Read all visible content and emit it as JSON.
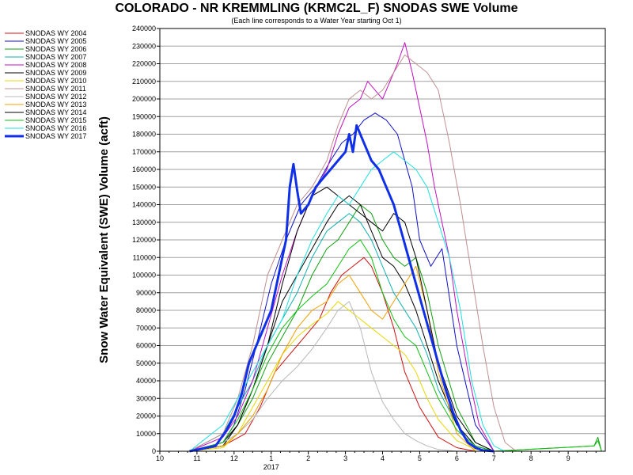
{
  "chart_data": {
    "type": "line",
    "title": "COLORADO - NR KREMMLING (KRMC2L_F) SNODAS SWE Volume",
    "subtitle": "(Each line corresponds to a Water Year starting Oct 1)",
    "ylabel": "Snow Water Equivalent (SWE) Volume (acft)",
    "xlabel": "",
    "ylim": [
      0,
      240000
    ],
    "yticks": [
      0,
      10000,
      20000,
      30000,
      40000,
      50000,
      60000,
      70000,
      80000,
      90000,
      100000,
      110000,
      120000,
      130000,
      140000,
      150000,
      160000,
      170000,
      180000,
      190000,
      200000,
      210000,
      220000,
      230000,
      240000
    ],
    "xticks": [
      {
        "month": 0,
        "label": "10"
      },
      {
        "month": 1,
        "label": "11"
      },
      {
        "month": 2,
        "label": "12"
      },
      {
        "month": 3,
        "label": "1",
        "sublabel": "2017"
      },
      {
        "month": 4,
        "label": "2"
      },
      {
        "month": 5,
        "label": "3"
      },
      {
        "month": 6,
        "label": "4"
      },
      {
        "month": 7,
        "label": "5"
      },
      {
        "month": 8,
        "label": "6"
      },
      {
        "month": 9,
        "label": "7"
      },
      {
        "month": 10,
        "label": "8"
      },
      {
        "month": 11,
        "label": "9"
      }
    ],
    "xlim_months": [
      0,
      12
    ],
    "grid": "horizontal",
    "legend_position": "left",
    "series": [
      {
        "name": "SNODAS WY 2004",
        "color": "#d01010",
        "width": 1,
        "x": [
          0.8,
          1.7,
          2.3,
          2.7,
          3.1,
          3.5,
          3.9,
          4.3,
          4.6,
          4.9,
          5.2,
          5.5,
          5.7,
          6.0,
          6.3,
          6.6,
          7.0,
          7.5,
          8.0,
          8.5
        ],
        "y": [
          0,
          3000,
          10000,
          25000,
          45000,
          55000,
          65000,
          75000,
          90000,
          100000,
          105000,
          110000,
          105000,
          90000,
          70000,
          45000,
          25000,
          8000,
          2000,
          0
        ]
      },
      {
        "name": "SNODAS WY 2005",
        "color": "#1010c8",
        "width": 1,
        "x": [
          0.8,
          1.7,
          2.0,
          2.3,
          2.6,
          3.0,
          3.4,
          3.8,
          4.2,
          4.6,
          4.9,
          5.2,
          5.5,
          5.8,
          6.1,
          6.4,
          6.6,
          6.8,
          7.0,
          7.3,
          7.6,
          8.0,
          8.5,
          9.0
        ],
        "y": [
          0,
          5000,
          15000,
          35000,
          60000,
          95000,
          120000,
          140000,
          150000,
          165000,
          175000,
          180000,
          188000,
          192000,
          188000,
          180000,
          165000,
          150000,
          120000,
          105000,
          115000,
          60000,
          15000,
          0
        ]
      },
      {
        "name": "SNODAS WY 2006",
        "color": "#10a010",
        "width": 1,
        "x": [
          0.8,
          1.7,
          2.1,
          2.5,
          2.9,
          3.3,
          3.7,
          4.1,
          4.5,
          4.8,
          5.1,
          5.4,
          5.7,
          6.0,
          6.3,
          6.6,
          6.9,
          7.2,
          7.5,
          8.0,
          8.5,
          9.0,
          11.7,
          11.8,
          11.9
        ],
        "y": [
          0,
          3000,
          15000,
          30000,
          50000,
          65000,
          80000,
          100000,
          115000,
          120000,
          130000,
          140000,
          135000,
          120000,
          110000,
          105000,
          110000,
          90000,
          60000,
          25000,
          5000,
          0,
          3000,
          8000,
          0
        ]
      },
      {
        "name": "SNODAS WY 2007",
        "color": "#10b0b0",
        "width": 1,
        "x": [
          0.8,
          1.7,
          2.1,
          2.5,
          2.9,
          3.3,
          3.7,
          4.1,
          4.5,
          4.8,
          5.1,
          5.4,
          5.7,
          6.0,
          6.3,
          6.6,
          6.9,
          7.2,
          7.5,
          8.0,
          8.5,
          9.0
        ],
        "y": [
          0,
          10000,
          25000,
          40000,
          60000,
          75000,
          90000,
          110000,
          125000,
          130000,
          135000,
          130000,
          120000,
          105000,
          90000,
          80000,
          70000,
          55000,
          35000,
          15000,
          3000,
          0
        ]
      },
      {
        "name": "SNODAS WY 2008",
        "color": "#c010c0",
        "width": 1,
        "x": [
          0.8,
          1.7,
          2.1,
          2.5,
          2.9,
          3.3,
          3.7,
          4.1,
          4.5,
          4.8,
          5.1,
          5.4,
          5.6,
          5.8,
          6.0,
          6.2,
          6.4,
          6.6,
          6.8,
          7.0,
          7.2,
          7.4,
          7.6,
          7.8,
          8.0,
          8.3,
          8.6,
          9.0
        ],
        "y": [
          0,
          8000,
          20000,
          40000,
          70000,
          100000,
          125000,
          145000,
          160000,
          180000,
          195000,
          200000,
          210000,
          205000,
          200000,
          210000,
          220000,
          232000,
          215000,
          195000,
          175000,
          150000,
          130000,
          110000,
          80000,
          45000,
          15000,
          0
        ]
      },
      {
        "name": "SNODAS WY 2009",
        "color": "#000000",
        "width": 1,
        "x": [
          0.8,
          1.7,
          2.1,
          2.5,
          2.9,
          3.3,
          3.7,
          4.1,
          4.5,
          4.8,
          5.1,
          5.4,
          5.7,
          6.0,
          6.3,
          6.6,
          6.9,
          7.2,
          7.5,
          8.0,
          8.5,
          9.0
        ],
        "y": [
          0,
          3000,
          15000,
          35000,
          60000,
          85000,
          100000,
          115000,
          130000,
          140000,
          145000,
          140000,
          125000,
          110000,
          105000,
          95000,
          80000,
          60000,
          40000,
          15000,
          3000,
          0
        ]
      },
      {
        "name": "SNODAS WY 2010",
        "color": "#e8d800",
        "width": 1,
        "x": [
          0.8,
          1.7,
          2.1,
          2.5,
          2.9,
          3.3,
          3.7,
          4.1,
          4.5,
          4.8,
          5.1,
          5.4,
          5.7,
          6.0,
          6.3,
          6.6,
          6.9,
          7.2,
          7.5,
          8.0,
          8.5,
          9.0
        ],
        "y": [
          0,
          2000,
          10000,
          25000,
          40000,
          55000,
          65000,
          72000,
          78000,
          85000,
          80000,
          75000,
          70000,
          65000,
          60000,
          55000,
          45000,
          30000,
          18000,
          6000,
          1000,
          0
        ]
      },
      {
        "name": "SNODAS WY 2011",
        "color": "#c09090",
        "width": 1,
        "x": [
          0.8,
          1.7,
          2.1,
          2.5,
          2.9,
          3.3,
          3.7,
          4.1,
          4.5,
          4.8,
          5.1,
          5.4,
          5.7,
          6.0,
          6.3,
          6.6,
          6.9,
          7.2,
          7.5,
          7.8,
          8.1,
          8.4,
          8.7,
          9.0,
          9.3,
          9.6
        ],
        "y": [
          0,
          10000,
          30000,
          60000,
          100000,
          120000,
          140000,
          150000,
          165000,
          185000,
          200000,
          205000,
          200000,
          205000,
          215000,
          225000,
          220000,
          215000,
          205000,
          175000,
          140000,
          100000,
          60000,
          25000,
          5000,
          0
        ]
      },
      {
        "name": "SNODAS WY 2012",
        "color": "#b8b8b8",
        "width": 1,
        "x": [
          0.8,
          1.7,
          2.1,
          2.5,
          2.9,
          3.3,
          3.7,
          4.1,
          4.5,
          4.8,
          5.1,
          5.4,
          5.7,
          6.0,
          6.3,
          6.6,
          6.9,
          7.2,
          7.5,
          8.0
        ],
        "y": [
          0,
          5000,
          10000,
          18000,
          30000,
          40000,
          48000,
          58000,
          70000,
          80000,
          85000,
          70000,
          45000,
          28000,
          18000,
          10000,
          6000,
          3000,
          1000,
          0
        ]
      },
      {
        "name": "SNODAS WY 2013",
        "color": "#f0a000",
        "width": 1,
        "x": [
          0.8,
          1.7,
          2.1,
          2.5,
          2.9,
          3.3,
          3.7,
          4.1,
          4.5,
          4.8,
          5.1,
          5.4,
          5.7,
          6.0,
          6.3,
          6.6,
          6.9,
          7.2,
          7.5,
          8.0,
          8.5
        ],
        "y": [
          0,
          3000,
          10000,
          20000,
          35000,
          55000,
          70000,
          80000,
          85000,
          95000,
          100000,
          90000,
          80000,
          75000,
          85000,
          95000,
          105000,
          80000,
          45000,
          10000,
          0
        ]
      },
      {
        "name": "SNODAS WY 2014",
        "color": "#000000",
        "width": 1,
        "x": [
          0.8,
          1.7,
          2.1,
          2.5,
          2.9,
          3.3,
          3.7,
          4.1,
          4.5,
          4.8,
          5.1,
          5.4,
          5.7,
          6.0,
          6.3,
          6.6,
          6.9,
          7.2,
          7.5,
          8.0,
          8.5,
          9.0
        ],
        "y": [
          0,
          5000,
          15000,
          35000,
          60000,
          95000,
          125000,
          145000,
          150000,
          145000,
          140000,
          135000,
          130000,
          125000,
          135000,
          130000,
          110000,
          80000,
          50000,
          20000,
          5000,
          0
        ]
      },
      {
        "name": "SNODAS WY 2015",
        "color": "#10c010",
        "width": 1,
        "x": [
          0.8,
          1.7,
          2.1,
          2.5,
          2.9,
          3.3,
          3.7,
          4.1,
          4.5,
          4.8,
          5.1,
          5.4,
          5.7,
          6.0,
          6.3,
          6.6,
          6.9,
          7.2,
          7.5,
          8.0,
          8.5,
          9.0,
          11.7,
          11.8,
          11.9
        ],
        "y": [
          0,
          5000,
          18000,
          35000,
          55000,
          70000,
          80000,
          88000,
          95000,
          105000,
          115000,
          120000,
          110000,
          90000,
          75000,
          65000,
          60000,
          45000,
          30000,
          12000,
          3000,
          0,
          3000,
          6000,
          0
        ]
      },
      {
        "name": "SNODAS WY 2016",
        "color": "#20e0e0",
        "width": 1,
        "x": [
          0.8,
          1.7,
          2.1,
          2.5,
          2.9,
          3.3,
          3.7,
          4.1,
          4.5,
          4.8,
          5.1,
          5.4,
          5.7,
          6.0,
          6.3,
          6.6,
          6.9,
          7.2,
          7.5,
          7.8,
          8.1,
          8.4,
          8.7,
          9.0,
          9.3
        ],
        "y": [
          0,
          15000,
          30000,
          45000,
          60000,
          75000,
          100000,
          120000,
          135000,
          145000,
          140000,
          150000,
          160000,
          165000,
          170000,
          165000,
          160000,
          150000,
          130000,
          110000,
          80000,
          40000,
          15000,
          3000,
          0
        ]
      },
      {
        "name": "SNODAS WY 2017",
        "color": "#1030e8",
        "width": 3,
        "x": [
          0.8,
          1.5,
          1.8,
          2.0,
          2.2,
          2.4,
          2.6,
          2.8,
          3.0,
          3.2,
          3.4,
          3.5,
          3.6,
          3.7,
          3.8,
          4.0,
          4.2,
          4.4,
          4.6,
          4.8,
          5.0,
          5.1,
          5.2,
          5.3,
          5.5,
          5.7,
          5.9,
          6.1,
          6.3,
          6.5,
          6.7,
          6.9,
          7.1,
          7.3,
          7.5,
          7.7,
          7.9,
          8.1,
          8.3,
          8.5,
          8.7,
          9.0
        ],
        "y": [
          0,
          3000,
          12000,
          20000,
          32000,
          50000,
          60000,
          70000,
          80000,
          100000,
          120000,
          150000,
          163000,
          148000,
          135000,
          140000,
          150000,
          155000,
          160000,
          165000,
          170000,
          180000,
          170000,
          185000,
          175000,
          165000,
          160000,
          150000,
          140000,
          125000,
          110000,
          95000,
          80000,
          65000,
          50000,
          35000,
          22000,
          12000,
          5000,
          2000,
          500,
          0
        ]
      }
    ]
  }
}
